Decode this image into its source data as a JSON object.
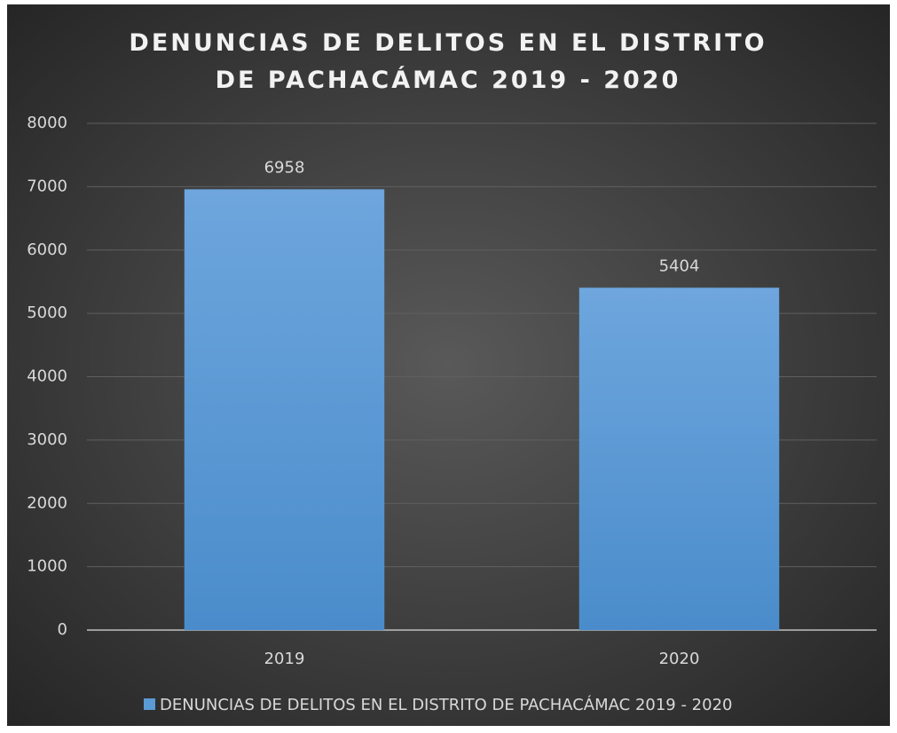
{
  "chart_data": {
    "type": "bar",
    "title": "DENUNCIAS DE DELITOS EN EL DISTRITO DE PACHACÁMAC 2019 - 2020",
    "categories": [
      "2019",
      "2020"
    ],
    "series": [
      {
        "name": "DENUNCIAS DE DELITOS EN EL DISTRITO DE PACHACÁMAC 2019 - 2020",
        "color": "#5b9bd5",
        "values": [
          6958,
          5404
        ]
      }
    ],
    "ylim": [
      0,
      8000
    ],
    "yticks": [
      0,
      1000,
      2000,
      3000,
      4000,
      5000,
      6000,
      7000,
      8000
    ],
    "grid": true,
    "legend": "bottom"
  }
}
